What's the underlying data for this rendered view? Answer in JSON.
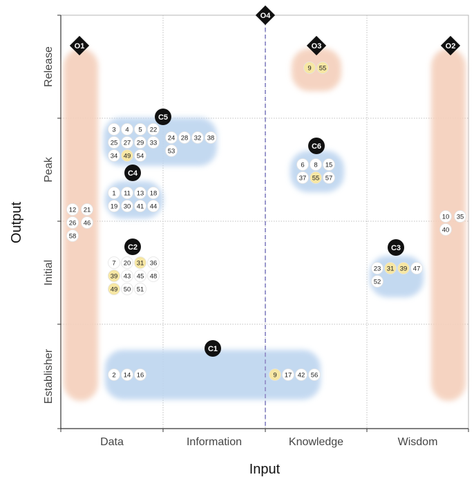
{
  "chart_data": {
    "type": "scatter",
    "xlabel": "Input",
    "ylabel": "Output",
    "x_categories": [
      "Data",
      "Information",
      "Knowledge",
      "Wisdom"
    ],
    "y_categories": [
      "Establisher",
      "Initial",
      "Peak",
      "Release"
    ],
    "grid": true,
    "clusters": [
      {
        "label": "C1",
        "groups": [
          {
            "col": 0,
            "row": 0,
            "ids": [
              "2",
              "14",
              "16"
            ]
          },
          {
            "col": 2,
            "row": 0,
            "ids": [
              "9",
              "17",
              "42",
              "56"
            ]
          }
        ]
      },
      {
        "label": "C2",
        "groups": [
          {
            "col": 0,
            "row": 1,
            "ids": [
              "7",
              "20",
              "31",
              "36",
              "39",
              "43",
              "45",
              "48",
              "49",
              "50",
              "51"
            ]
          }
        ]
      },
      {
        "label": "C3",
        "groups": [
          {
            "col": 3,
            "row": 1,
            "ids": [
              "23",
              "31",
              "39",
              "47",
              "52"
            ]
          }
        ]
      },
      {
        "label": "C4",
        "groups": [
          {
            "col": 0,
            "row": 2,
            "ids": [
              "1",
              "11",
              "13",
              "18",
              "19",
              "30",
              "41",
              "44"
            ]
          }
        ]
      },
      {
        "label": "C5",
        "groups": [
          {
            "col": 0,
            "row": 2,
            "ids": [
              "3",
              "4",
              "5",
              "22",
              "25",
              "27",
              "29",
              "33",
              "34",
              "49",
              "54"
            ]
          },
          {
            "col": 1,
            "row": 2,
            "ids": [
              "24",
              "28",
              "32",
              "38",
              "53"
            ]
          }
        ]
      },
      {
        "label": "C6",
        "groups": [
          {
            "col": 2,
            "row": 2,
            "ids": [
              "6",
              "8",
              "15",
              "37",
              "55",
              "57"
            ]
          }
        ]
      }
    ],
    "outliers": [
      {
        "label": "O1",
        "ids": [
          "12",
          "21",
          "26",
          "46",
          "58"
        ]
      },
      {
        "label": "O2",
        "ids": [
          "10",
          "35",
          "40"
        ]
      },
      {
        "label": "O3",
        "ids": [
          "9",
          "55"
        ]
      },
      {
        "label": "O4",
        "ids": []
      }
    ],
    "highlighted_ids": [
      "9",
      "31",
      "39",
      "49",
      "55"
    ],
    "colors": {
      "cluster_fill": "#b8d2ef",
      "outlier_fill": "#f3cdb8",
      "highlight_node": "#f7e7a4",
      "node": "#ffffff",
      "badge": "#111111",
      "divider": "#9a98cc",
      "grid": "#bfbfbf"
    }
  }
}
